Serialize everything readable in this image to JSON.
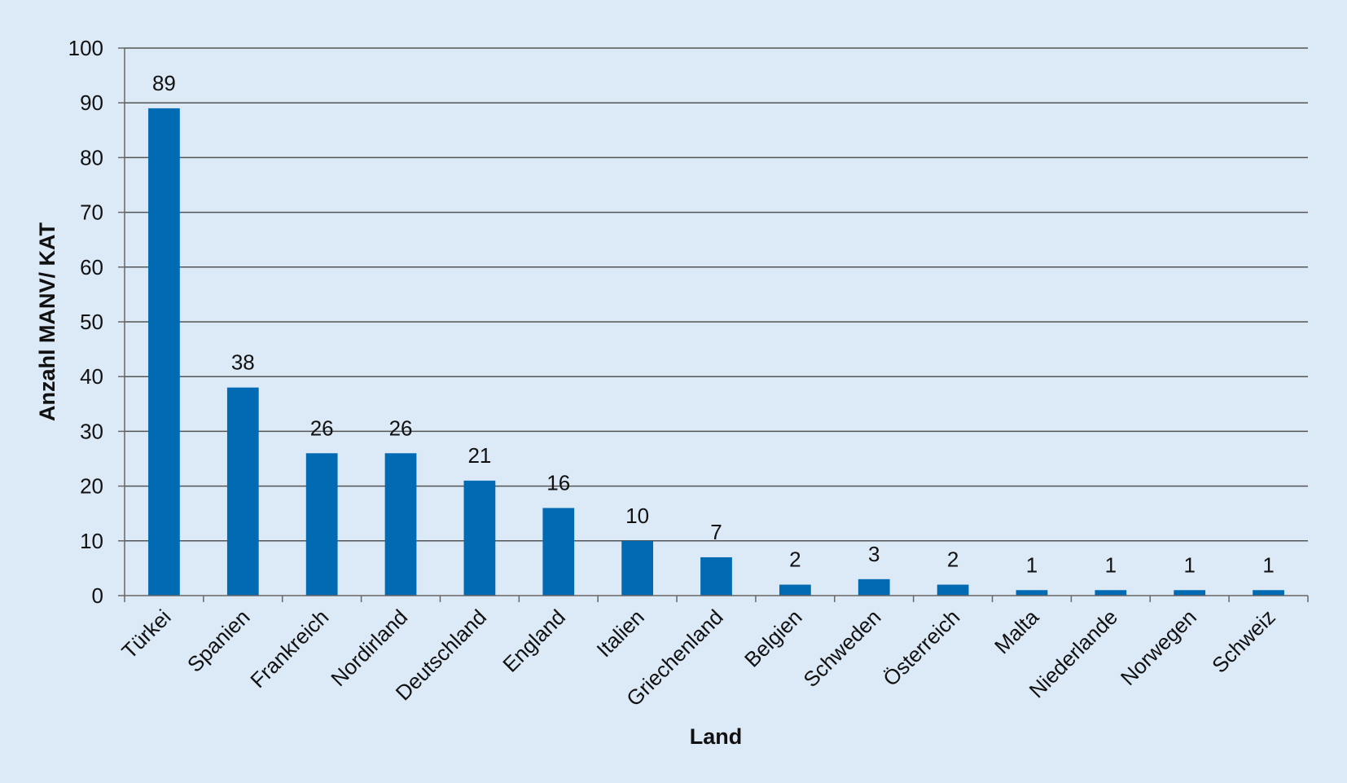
{
  "colors": {
    "background": "#dce9f6",
    "bar": "#006ab3",
    "gridline": "#555555",
    "axis": "#666666",
    "text": "#111111"
  },
  "chart_data": {
    "type": "bar",
    "categories": [
      "Türkei",
      "Spanien",
      "Frankreich",
      "Nordirland",
      "Deutschland",
      "England",
      "Italien",
      "Griechenland",
      "Belgien",
      "Schweden",
      "Österreich",
      "Malta",
      "Niederlande",
      "Norwegen",
      "Schweiz"
    ],
    "values": [
      89,
      38,
      26,
      26,
      21,
      16,
      10,
      7,
      2,
      3,
      2,
      1,
      1,
      1,
      1
    ],
    "data_labels": [
      "89",
      "38",
      "26",
      "26",
      "21",
      "16",
      "10",
      "7",
      "2",
      "3",
      "2",
      "1",
      "1",
      "1",
      "1"
    ],
    "title": "",
    "xlabel": "Land",
    "ylabel": "Anzahl MANV/ KAT",
    "ylim": [
      0,
      100
    ],
    "yticks": [
      "0",
      "10",
      "20",
      "30",
      "40",
      "50",
      "60",
      "70",
      "80",
      "90",
      "100"
    ],
    "grid": true,
    "legend": "none"
  }
}
